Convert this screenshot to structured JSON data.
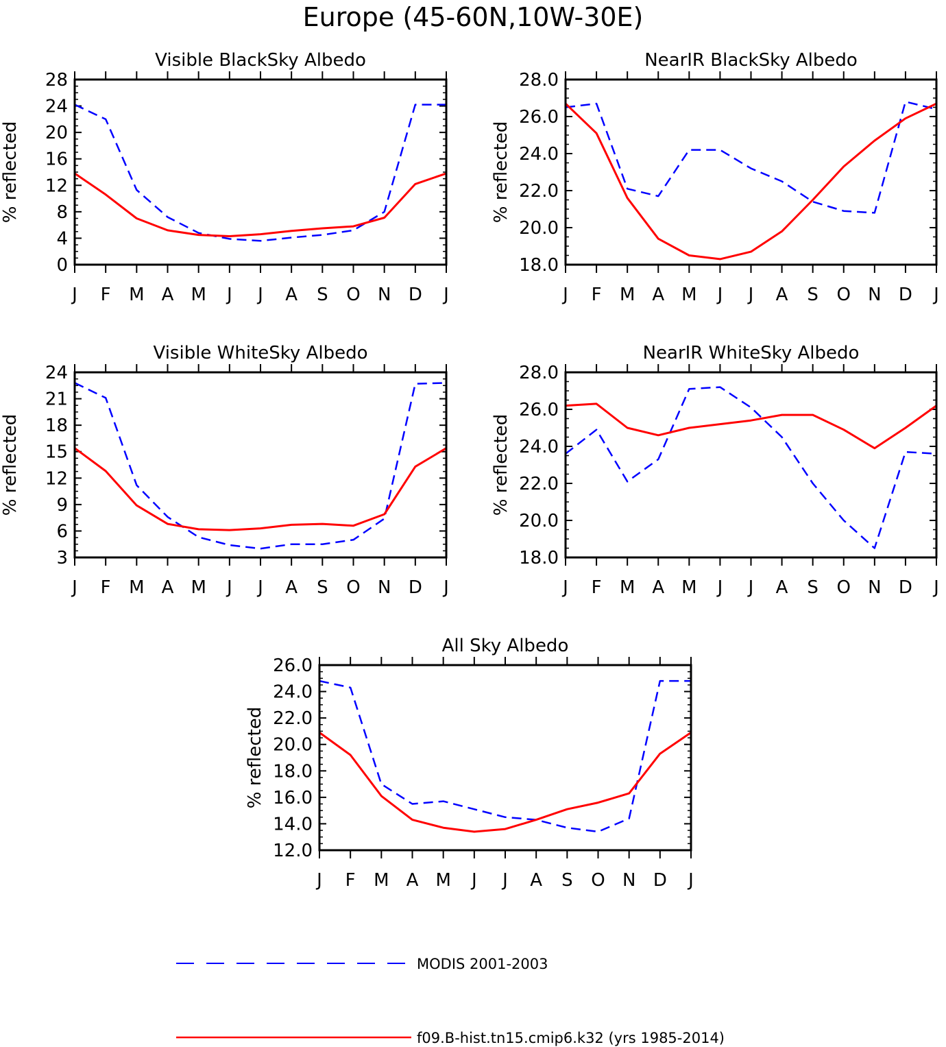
{
  "title": "Europe (45-60N,10W-30E)",
  "legend": [
    {
      "name": "MODIS 2001-2003",
      "color": "#0000ff",
      "dash": true
    },
    {
      "name": "f09.B-hist.tn15.cmip6.k32 (yrs 1985-2014)",
      "color": "#ff0000",
      "dash": false
    }
  ],
  "chart_data": [
    {
      "type": "line",
      "title": "Visible BlackSky Albedo",
      "ylabel": "% reflected",
      "ylim": [
        0,
        28
      ],
      "yticks": [
        "0",
        "4",
        "8",
        "12",
        "16",
        "20",
        "24",
        "28"
      ],
      "categories": [
        "J",
        "F",
        "M",
        "A",
        "M",
        "J",
        "J",
        "A",
        "S",
        "O",
        "N",
        "D",
        "J"
      ],
      "series": [
        {
          "name": "MODIS 2001-2003",
          "color": "#0000ff",
          "dash": true,
          "values": [
            24.2,
            22.0,
            11.3,
            7.2,
            4.8,
            3.9,
            3.6,
            4.1,
            4.5,
            5.2,
            8.0,
            24.2,
            24.2
          ]
        },
        {
          "name": "f09.B-hist.tn15.cmip6.k32 (yrs 1985-2014)",
          "color": "#ff0000",
          "dash": false,
          "values": [
            13.8,
            10.6,
            7.0,
            5.2,
            4.5,
            4.3,
            4.6,
            5.1,
            5.5,
            5.8,
            7.1,
            12.2,
            13.8
          ]
        }
      ]
    },
    {
      "type": "line",
      "title": "NearIR BlackSky Albedo",
      "ylabel": "% reflected",
      "ylim": [
        18,
        28
      ],
      "yticks": [
        "18.0",
        "20.0",
        "22.0",
        "24.0",
        "26.0",
        "28.0"
      ],
      "categories": [
        "J",
        "F",
        "M",
        "A",
        "M",
        "J",
        "J",
        "A",
        "S",
        "O",
        "N",
        "D",
        "J"
      ],
      "series": [
        {
          "name": "MODIS 2001-2003",
          "color": "#0000ff",
          "dash": true,
          "values": [
            26.5,
            26.7,
            22.1,
            21.7,
            24.2,
            24.2,
            23.2,
            22.5,
            21.4,
            20.9,
            20.8,
            26.8,
            26.4
          ]
        },
        {
          "name": "f09.B-hist.tn15.cmip6.k32 (yrs 1985-2014)",
          "color": "#ff0000",
          "dash": false,
          "values": [
            26.7,
            25.1,
            21.6,
            19.4,
            18.5,
            18.3,
            18.7,
            19.8,
            21.5,
            23.3,
            24.7,
            25.9,
            26.7
          ]
        }
      ]
    },
    {
      "type": "line",
      "title": "Visible WhiteSky Albedo",
      "ylabel": "% reflected",
      "ylim": [
        3,
        24
      ],
      "yticks": [
        "3",
        "6",
        "9",
        "12",
        "15",
        "18",
        "21",
        "24"
      ],
      "categories": [
        "J",
        "F",
        "M",
        "A",
        "M",
        "J",
        "J",
        "A",
        "S",
        "O",
        "N",
        "D",
        "J"
      ],
      "series": [
        {
          "name": "MODIS 2001-2003",
          "color": "#0000ff",
          "dash": true,
          "values": [
            22.8,
            21.1,
            11.2,
            7.6,
            5.3,
            4.4,
            4.0,
            4.5,
            4.5,
            5.0,
            7.4,
            22.7,
            22.8
          ]
        },
        {
          "name": "f09.B-hist.tn15.cmip6.k32 (yrs 1985-2014)",
          "color": "#ff0000",
          "dash": false,
          "values": [
            15.4,
            12.8,
            8.9,
            6.8,
            6.2,
            6.1,
            6.3,
            6.7,
            6.8,
            6.6,
            7.9,
            13.3,
            15.4
          ]
        }
      ]
    },
    {
      "type": "line",
      "title": "NearIR WhiteSky Albedo",
      "ylabel": "% reflected",
      "ylim": [
        18,
        28
      ],
      "yticks": [
        "18.0",
        "20.0",
        "22.0",
        "24.0",
        "26.0",
        "28.0"
      ],
      "categories": [
        "J",
        "F",
        "M",
        "A",
        "M",
        "J",
        "J",
        "A",
        "S",
        "O",
        "N",
        "D",
        "J"
      ],
      "series": [
        {
          "name": "MODIS 2001-2003",
          "color": "#0000ff",
          "dash": true,
          "values": [
            23.6,
            24.9,
            22.1,
            23.3,
            27.1,
            27.2,
            26.1,
            24.5,
            22.0,
            20.0,
            18.5,
            23.7,
            23.6
          ]
        },
        {
          "name": "f09.B-hist.tn15.cmip6.k32 (yrs 1985-2014)",
          "color": "#ff0000",
          "dash": false,
          "values": [
            26.2,
            26.3,
            25.0,
            24.6,
            25.0,
            25.2,
            25.4,
            25.7,
            25.7,
            24.9,
            23.9,
            25.0,
            26.2
          ]
        }
      ]
    },
    {
      "type": "line",
      "title": "All Sky Albedo",
      "ylabel": "% reflected",
      "ylim": [
        12,
        26
      ],
      "yticks": [
        "12.0",
        "14.0",
        "16.0",
        "18.0",
        "20.0",
        "22.0",
        "24.0",
        "26.0"
      ],
      "categories": [
        "J",
        "F",
        "M",
        "A",
        "M",
        "J",
        "J",
        "A",
        "S",
        "O",
        "N",
        "D",
        "J"
      ],
      "series": [
        {
          "name": "MODIS 2001-2003",
          "color": "#0000ff",
          "dash": true,
          "values": [
            24.8,
            24.3,
            17.0,
            15.5,
            15.7,
            15.1,
            14.5,
            14.3,
            13.7,
            13.4,
            14.4,
            24.8,
            24.8
          ]
        },
        {
          "name": "f09.B-hist.tn15.cmip6.k32 (yrs 1985-2014)",
          "color": "#ff0000",
          "dash": false,
          "values": [
            20.9,
            19.2,
            16.1,
            14.3,
            13.7,
            13.4,
            13.6,
            14.3,
            15.1,
            15.6,
            16.3,
            19.3,
            20.9
          ]
        }
      ]
    }
  ]
}
